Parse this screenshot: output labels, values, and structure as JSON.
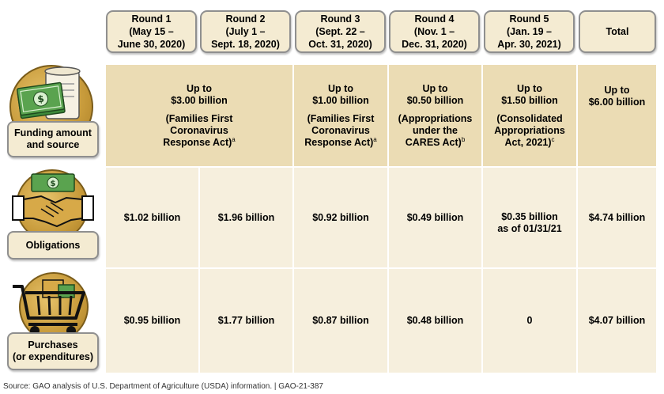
{
  "columns": [
    {
      "title": "Round 1",
      "line2": "(May 15 –",
      "line3": "June 30, 2020)"
    },
    {
      "title": "Round 2",
      "line2": "(July 1 –",
      "line3": "Sept. 18, 2020)"
    },
    {
      "title": "Round 3",
      "line2": "(Sept. 22 –",
      "line3": "Oct. 31, 2020)"
    },
    {
      "title": "Round 4",
      "line2": "(Nov. 1 –",
      "line3": "Dec. 31, 2020)"
    },
    {
      "title": "Round 5",
      "line2": "(Jan. 19 –",
      "line3": "Apr. 30, 2021)"
    },
    {
      "title": "Total",
      "line2": "",
      "line3": ""
    }
  ],
  "row_labels": {
    "funding": {
      "line1": "Funding amount",
      "line2": "and source",
      "icon": "money-scroll-icon"
    },
    "obligations": {
      "line1": "Obligations",
      "icon": "handshake-money-icon"
    },
    "purchases": {
      "line1": "Purchases",
      "line2": "(or expenditures)",
      "icon": "shopping-cart-icon"
    }
  },
  "funding": [
    {
      "amount_l1": "Up to",
      "amount_l2": "$3.00 billion",
      "src_l1": "(Families First",
      "src_l2": "Coronavirus",
      "src_l3": "Response Act)",
      "note": "a"
    },
    {
      "amount_l1": "Up to",
      "amount_l2": "$1.00 billion",
      "src_l1": "(Families First",
      "src_l2": "Coronavirus",
      "src_l3": "Response Act)",
      "note": "a"
    },
    {
      "amount_l1": "Up to",
      "amount_l2": "$0.50 billion",
      "src_l1": "(Appropriations",
      "src_l2": "under the",
      "src_l3": "CARES Act)",
      "note": "b"
    },
    {
      "amount_l1": "Up to",
      "amount_l2": "$1.50 billion",
      "src_l1": "(Consolidated",
      "src_l2": "Appropriations",
      "src_l3": "Act, 2021)",
      "note": "c"
    },
    {
      "amount_l1": "Up to",
      "amount_l2": "$6.00 billion",
      "src_l1": "",
      "src_l2": "",
      "src_l3": "",
      "note": ""
    }
  ],
  "obligations": [
    "$1.02 billion",
    "$1.96 billion",
    "$0.92 billion",
    "$0.49 billion",
    "$0.35 billion",
    "$4.74 billion"
  ],
  "obligations_round5_note": "as of 01/31/21",
  "purchases": [
    "$0.95 billion",
    "$1.77 billion",
    "$0.87 billion",
    "$0.48 billion",
    "0",
    "$4.07 billion"
  ],
  "source": "Source: GAO analysis of U.S. Department of Agriculture (USDA) information.  |  GAO-21-387",
  "colors": {
    "header_fill": "#f4ebd2",
    "funding_row": "#ebdcb4",
    "body_row": "#f6efdd",
    "border": "#8f8f8f",
    "icon_gold": "#c79a3a"
  }
}
